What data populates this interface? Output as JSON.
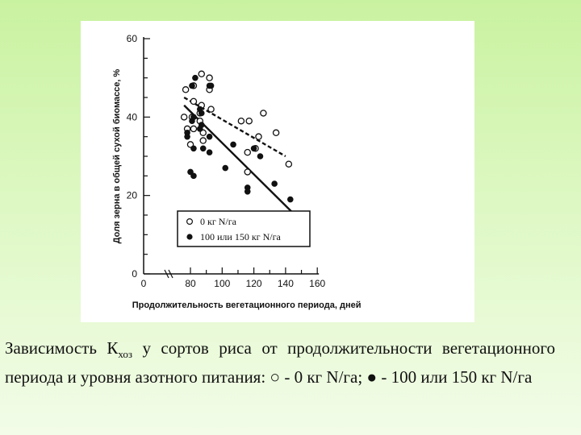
{
  "chart_data": {
    "type": "scatter",
    "ylabel": "Доля зерна в общей сухой биомассе, %",
    "xlabel": "Продолжительность вегетационного периода, дней",
    "xlim": [
      0,
      160
    ],
    "ylim": [
      0,
      60
    ],
    "x_ticks": [
      0,
      80,
      100,
      120,
      140,
      160
    ],
    "y_ticks": [
      0,
      20,
      40,
      60
    ],
    "legend": {
      "placement": "bottom-center",
      "entries": [
        {
          "marker": "open-circle",
          "label": "0 кг N/га",
          "line": "dashed"
        },
        {
          "marker": "filled-circle",
          "label": "100 или 150 кг N/га",
          "line": "solid"
        }
      ]
    },
    "series": [
      {
        "marker": "open-circle",
        "points": [
          [
            76,
            40
          ],
          [
            77,
            47
          ],
          [
            78,
            37
          ],
          [
            80,
            33
          ],
          [
            81,
            40
          ],
          [
            82,
            37
          ],
          [
            82,
            48
          ],
          [
            82,
            44
          ],
          [
            86,
            39
          ],
          [
            86,
            41
          ],
          [
            87,
            43
          ],
          [
            88,
            36
          ],
          [
            88,
            34
          ],
          [
            87,
            51
          ],
          [
            92,
            47
          ],
          [
            92,
            50
          ],
          [
            93,
            42
          ],
          [
            112,
            39
          ],
          [
            116,
            31
          ],
          [
            117,
            39
          ],
          [
            116,
            26
          ],
          [
            121,
            32
          ],
          [
            123,
            35
          ],
          [
            126,
            41
          ],
          [
            134,
            36
          ],
          [
            142,
            28
          ]
        ],
        "trend": [
          [
            76,
            45
          ],
          [
            140,
            30
          ]
        ]
      },
      {
        "marker": "filled-circle",
        "points": [
          [
            78,
            36
          ],
          [
            78,
            35
          ],
          [
            80,
            26
          ],
          [
            81,
            39
          ],
          [
            81,
            48
          ],
          [
            82,
            25
          ],
          [
            82,
            32
          ],
          [
            82,
            40
          ],
          [
            83,
            50
          ],
          [
            86,
            42
          ],
          [
            86,
            37
          ],
          [
            87,
            38
          ],
          [
            87,
            41
          ],
          [
            88,
            32
          ],
          [
            92,
            35
          ],
          [
            92,
            31
          ],
          [
            92,
            48
          ],
          [
            93,
            48
          ],
          [
            102,
            27
          ],
          [
            107,
            33
          ],
          [
            116,
            22
          ],
          [
            116,
            21
          ],
          [
            120,
            32
          ],
          [
            124,
            30
          ],
          [
            133,
            23
          ],
          [
            143,
            19
          ]
        ],
        "trend": [
          [
            76,
            43
          ],
          [
            146,
            15
          ]
        ]
      }
    ]
  },
  "caption": {
    "line1_pre": "Зависимость К",
    "sub": "хоз",
    "line1_post": " у сортов риса от продолжительности вегетационного периода и уровня азотного питания:  ○ - 0 кг N/га; ● - 100 или 150 кг N/га"
  }
}
